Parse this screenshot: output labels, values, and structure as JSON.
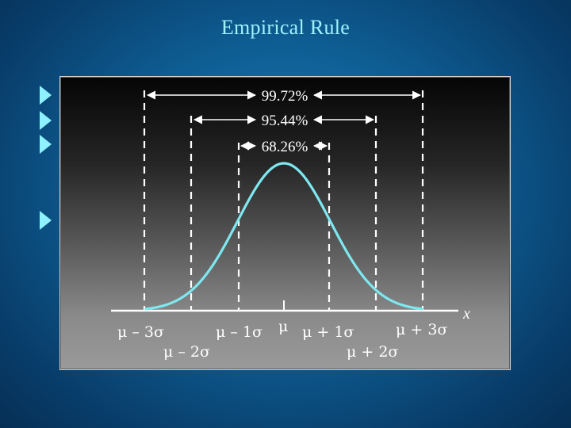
{
  "slide": {
    "title": "Empirical Rule"
  },
  "bullets": [
    {
      "icon": "triangle-bullet-icon"
    },
    {
      "icon": "triangle-bullet-icon"
    },
    {
      "icon": "triangle-bullet-icon"
    },
    {
      "icon": "triangle-bullet-icon"
    }
  ],
  "diagram": {
    "intervals": [
      {
        "label": "99.72%",
        "k": 3
      },
      {
        "label": "95.44%",
        "k": 2
      },
      {
        "label": "68.26%",
        "k": 1
      }
    ],
    "axis_labels": {
      "m3": "μ – 3σ",
      "m2": "μ – 2σ",
      "m1": "μ – 1σ",
      "mu": "μ",
      "p1": "μ + 1σ",
      "p2": "μ + 2σ",
      "p3": "μ + 3σ",
      "x": "x"
    },
    "colors": {
      "curve": "#7ee8f0",
      "title": "#9ff3ff",
      "bullet": "#8ff0ff"
    }
  }
}
